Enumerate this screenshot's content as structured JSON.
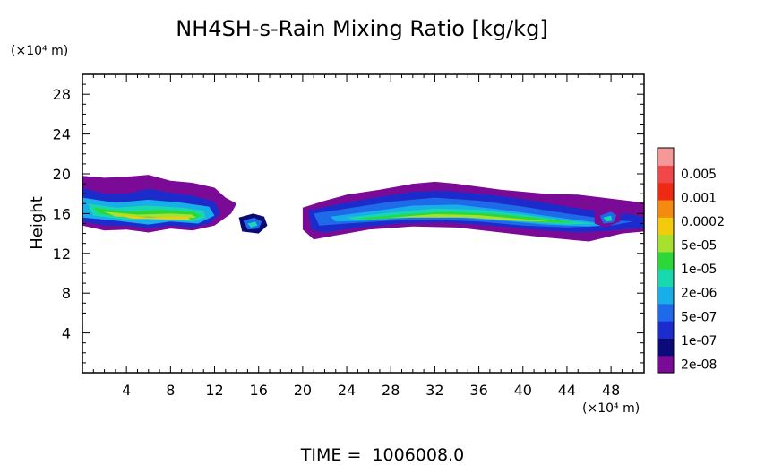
{
  "chart_data": {
    "type": "heatmap",
    "title": "NH4SH-s-Rain Mixing Ratio [kg/kg]",
    "ylabel": "Height",
    "y_unit": "(×10⁴ m)",
    "x_unit": "(×10⁴ m)",
    "footer": "TIME =  1006008.0",
    "xlim": [
      0,
      51
    ],
    "ylim": [
      0,
      30
    ],
    "xticks": [
      "4",
      "8",
      "12",
      "16",
      "20",
      "24",
      "28",
      "32",
      "36",
      "40",
      "44",
      "48"
    ],
    "yticks": [
      "4",
      "8",
      "12",
      "16",
      "20",
      "24",
      "28"
    ],
    "colorbar": {
      "labels": [
        "0.005",
        "0.001",
        "0.0002",
        "5e-05",
        "1e-05",
        "2e-06",
        "5e-07",
        "1e-07",
        "2e-08"
      ],
      "colors": [
        "#7b0b96",
        "#0a0a78",
        "#1c2ccc",
        "#1e6ae8",
        "#18aee8",
        "#19d8b0",
        "#2bd838",
        "#a8e030",
        "#f2cb0c",
        "#f48a10",
        "#ee2a12",
        "#f04848",
        "#f69898"
      ]
    },
    "regions": [
      {
        "name": "band-outer",
        "level": 0,
        "points": [
          [
            0,
            19.8
          ],
          [
            2,
            19.6
          ],
          [
            4,
            19.7
          ],
          [
            6,
            19.9
          ],
          [
            8,
            19.3
          ],
          [
            10,
            19.1
          ],
          [
            12,
            18.6
          ],
          [
            13,
            17.6
          ],
          [
            14,
            17
          ],
          [
            13.5,
            16
          ],
          [
            12,
            14.8
          ],
          [
            10,
            14.3
          ],
          [
            8,
            14.5
          ],
          [
            6,
            14.1
          ],
          [
            4,
            14.4
          ],
          [
            2,
            14.3
          ],
          [
            0,
            14.8
          ]
        ]
      },
      {
        "name": "band-level-2",
        "level": 2,
        "points": [
          [
            0,
            18.6
          ],
          [
            2,
            18
          ],
          [
            4,
            18
          ],
          [
            6,
            18.5
          ],
          [
            8,
            18.1
          ],
          [
            10,
            17.8
          ],
          [
            12,
            17.2
          ],
          [
            12.5,
            16
          ],
          [
            11.5,
            15
          ],
          [
            10,
            14.6
          ],
          [
            8,
            14.8
          ],
          [
            6,
            14.5
          ],
          [
            4,
            14.8
          ],
          [
            2,
            14.8
          ],
          [
            0,
            15.2
          ]
        ]
      },
      {
        "name": "band-level-4",
        "level": 4,
        "points": [
          [
            0,
            17.6
          ],
          [
            3,
            17.1
          ],
          [
            6,
            17.4
          ],
          [
            9,
            17.1
          ],
          [
            11.5,
            16.7
          ],
          [
            12,
            15.8
          ],
          [
            10.5,
            15
          ],
          [
            8,
            15.2
          ],
          [
            6,
            14.9
          ],
          [
            3,
            15.3
          ],
          [
            0,
            15.6
          ]
        ]
      },
      {
        "name": "band-level-5",
        "level": 5,
        "points": [
          [
            0.5,
            17
          ],
          [
            3,
            16.6
          ],
          [
            6,
            16.8
          ],
          [
            9,
            16.6
          ],
          [
            11,
            16.3
          ],
          [
            11.2,
            15.6
          ],
          [
            10,
            15.2
          ],
          [
            7,
            15.5
          ],
          [
            4,
            15.4
          ],
          [
            1,
            15.8
          ]
        ]
      },
      {
        "name": "band-level-6",
        "level": 6,
        "points": [
          [
            1,
            16.6
          ],
          [
            4,
            16.2
          ],
          [
            7,
            16.4
          ],
          [
            10,
            16.2
          ],
          [
            10.8,
            15.8
          ],
          [
            10,
            15.4
          ],
          [
            7,
            15.7
          ],
          [
            4,
            15.6
          ],
          [
            1.5,
            16
          ]
        ]
      },
      {
        "name": "band-level-7",
        "level": 7,
        "points": [
          [
            2,
            16.2
          ],
          [
            5,
            15.9
          ],
          [
            8,
            16
          ],
          [
            10,
            15.9
          ],
          [
            10.3,
            15.6
          ],
          [
            9,
            15.5
          ],
          [
            6,
            15.7
          ],
          [
            3,
            15.7
          ]
        ]
      },
      {
        "name": "band-level-8",
        "level": 8,
        "points": [
          [
            3,
            15.9
          ],
          [
            6,
            15.6
          ],
          [
            9.5,
            15.7
          ],
          [
            9.8,
            15.4
          ],
          [
            8,
            15.4
          ],
          [
            4.5,
            15.5
          ]
        ]
      },
      {
        "name": "puff-outer",
        "level": 1,
        "points": [
          [
            14.2,
            15.6
          ],
          [
            15.5,
            16
          ],
          [
            16.5,
            15.7
          ],
          [
            16.8,
            14.8
          ],
          [
            16,
            14
          ],
          [
            14.5,
            14.2
          ]
        ]
      },
      {
        "name": "puff-level-3",
        "level": 3,
        "points": [
          [
            14.6,
            15.3
          ],
          [
            15.6,
            15.6
          ],
          [
            16.3,
            15.2
          ],
          [
            16,
            14.5
          ],
          [
            15,
            14.4
          ]
        ]
      },
      {
        "name": "puff-level-5",
        "level": 5,
        "points": [
          [
            15,
            15
          ],
          [
            15.7,
            15.2
          ],
          [
            15.9,
            14.8
          ],
          [
            15.3,
            14.6
          ]
        ]
      },
      {
        "name": "arc-outer",
        "level": 0,
        "points": [
          [
            20,
            16.6
          ],
          [
            22,
            17.3
          ],
          [
            24,
            17.9
          ],
          [
            27,
            18.4
          ],
          [
            30,
            19
          ],
          [
            32,
            19.2
          ],
          [
            34,
            19
          ],
          [
            38,
            18.4
          ],
          [
            42,
            18
          ],
          [
            45,
            17.9
          ],
          [
            48,
            17.5
          ],
          [
            51,
            17.1
          ],
          [
            51,
            14.2
          ],
          [
            49,
            14
          ],
          [
            46,
            13.2
          ],
          [
            42,
            13.6
          ],
          [
            38,
            14.1
          ],
          [
            34,
            14.6
          ],
          [
            30,
            14.7
          ],
          [
            26,
            14.4
          ],
          [
            23,
            13.8
          ],
          [
            21,
            13.4
          ],
          [
            20,
            14.4
          ]
        ]
      },
      {
        "name": "arc-level-2",
        "level": 2,
        "points": [
          [
            20.5,
            16.3
          ],
          [
            23,
            16.9
          ],
          [
            26,
            17.5
          ],
          [
            30,
            18.2
          ],
          [
            33,
            18.3
          ],
          [
            37,
            17.9
          ],
          [
            41,
            17.3
          ],
          [
            44,
            16.7
          ],
          [
            47,
            16.2
          ],
          [
            50,
            15.9
          ],
          [
            51,
            15.6
          ],
          [
            51,
            14.6
          ],
          [
            48,
            14.3
          ],
          [
            45,
            14.1
          ],
          [
            41,
            14.4
          ],
          [
            37,
            14.8
          ],
          [
            33,
            15.1
          ],
          [
            29,
            15
          ],
          [
            25,
            14.6
          ],
          [
            22,
            14.1
          ],
          [
            20.8,
            14.4
          ]
        ]
      },
      {
        "name": "arc-level-3",
        "level": 3,
        "points": [
          [
            21,
            16
          ],
          [
            24,
            16.5
          ],
          [
            28,
            17.2
          ],
          [
            32,
            17.6
          ],
          [
            36,
            17.3
          ],
          [
            40,
            16.7
          ],
          [
            44,
            16
          ],
          [
            48,
            15.4
          ],
          [
            50,
            15.2
          ],
          [
            48,
            14.8
          ],
          [
            44,
            14.6
          ],
          [
            40,
            14.8
          ],
          [
            36,
            15.2
          ],
          [
            32,
            15.4
          ],
          [
            28,
            15.3
          ],
          [
            24,
            15
          ],
          [
            21.5,
            14.8
          ]
        ]
      },
      {
        "name": "arc-level-4",
        "level": 4,
        "points": [
          [
            22.5,
            15.7
          ],
          [
            26,
            16.2
          ],
          [
            30,
            16.8
          ],
          [
            34,
            16.9
          ],
          [
            38,
            16.4
          ],
          [
            42,
            15.8
          ],
          [
            46,
            15.2
          ],
          [
            48,
            14.9
          ],
          [
            46,
            14.7
          ],
          [
            42,
            14.9
          ],
          [
            38,
            15.3
          ],
          [
            34,
            15.6
          ],
          [
            30,
            15.6
          ],
          [
            26,
            15.3
          ],
          [
            23,
            15.2
          ]
        ]
      },
      {
        "name": "arc-level-5",
        "level": 5,
        "points": [
          [
            24,
            15.6
          ],
          [
            28,
            16.1
          ],
          [
            32,
            16.5
          ],
          [
            36,
            16.4
          ],
          [
            40,
            15.9
          ],
          [
            44,
            15.3
          ],
          [
            46.5,
            15
          ],
          [
            44,
            14.9
          ],
          [
            40,
            15.2
          ],
          [
            36,
            15.6
          ],
          [
            32,
            15.8
          ],
          [
            28,
            15.6
          ],
          [
            25,
            15.3
          ]
        ]
      },
      {
        "name": "arc-level-6",
        "level": 6,
        "points": [
          [
            25,
            15.5
          ],
          [
            29,
            15.9
          ],
          [
            33,
            16.2
          ],
          [
            37,
            16
          ],
          [
            41,
            15.6
          ],
          [
            45,
            15.1
          ],
          [
            42,
            15.1
          ],
          [
            38,
            15.5
          ],
          [
            34,
            15.8
          ],
          [
            30,
            15.7
          ],
          [
            26,
            15.4
          ]
        ]
      },
      {
        "name": "arc-level-7",
        "level": 7,
        "points": [
          [
            28,
            15.6
          ],
          [
            32,
            15.95
          ],
          [
            36,
            15.85
          ],
          [
            40,
            15.45
          ],
          [
            42.5,
            15.2
          ],
          [
            39,
            15.3
          ],
          [
            35,
            15.6
          ],
          [
            31,
            15.6
          ]
        ]
      },
      {
        "name": "blob-outer",
        "level": 0,
        "points": [
          [
            46.5,
            16.2
          ],
          [
            48,
            16.8
          ],
          [
            49,
            16.5
          ],
          [
            48.8,
            15.2
          ],
          [
            47.5,
            14.6
          ],
          [
            46.5,
            15
          ]
        ]
      },
      {
        "name": "blob-level-3",
        "level": 3,
        "points": [
          [
            47,
            15.8
          ],
          [
            48,
            16.2
          ],
          [
            48.5,
            15.8
          ],
          [
            48.2,
            15.1
          ],
          [
            47.3,
            15
          ]
        ]
      },
      {
        "name": "blob-level-5",
        "level": 5,
        "points": [
          [
            47.3,
            15.6
          ],
          [
            48,
            15.8
          ],
          [
            48.1,
            15.3
          ],
          [
            47.6,
            15.2
          ]
        ]
      }
    ]
  }
}
